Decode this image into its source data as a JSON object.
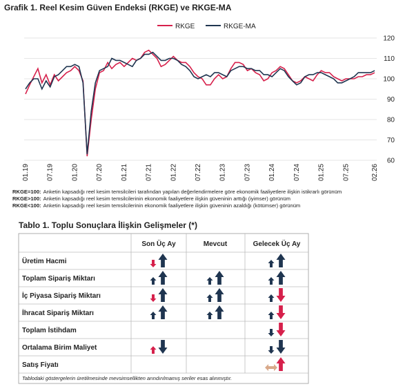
{
  "chart_data": {
    "type": "line",
    "title": "Grafik 1. Reel Kesim Güven Endeksi (RKGE) ve RKGE-MA",
    "categories": [
      "01.19",
      null,
      null,
      null,
      null,
      null,
      "07.19",
      null,
      null,
      null,
      null,
      null,
      "01.20",
      null,
      null,
      null,
      null,
      null,
      "07.20",
      null,
      null,
      null,
      null,
      null,
      "01.21",
      null,
      null,
      null,
      null,
      null,
      "07.21",
      null,
      null,
      null,
      null,
      null,
      "01.22",
      null,
      null,
      null,
      null,
      null,
      "07.22",
      null,
      null,
      null,
      null,
      null,
      "01.23",
      null,
      null,
      null,
      null,
      null,
      "07.23",
      null,
      null,
      null,
      null,
      null,
      "01.24",
      null,
      null,
      null,
      null,
      null,
      "07.24",
      null,
      null,
      null,
      null,
      null,
      "01.25",
      null,
      null,
      null,
      null,
      null,
      "07.25",
      null,
      null,
      null,
      null,
      null,
      null,
      "02.26"
    ],
    "series": [
      {
        "name": "RKGE",
        "color": "#d6204b",
        "values": [
          92.5,
          97,
          101,
          105,
          98,
          102,
          97,
          102,
          99,
          101,
          103,
          104,
          106,
          104,
          99,
          62,
          80,
          95,
          103,
          104,
          108,
          105,
          107,
          108,
          106,
          108,
          110,
          109,
          110,
          113,
          114,
          112,
          110,
          106,
          107,
          109,
          111,
          109,
          108,
          108,
          106,
          103,
          101,
          100,
          97,
          97,
          100,
          102,
          100,
          101,
          105,
          108,
          108,
          107,
          104,
          105,
          103,
          102,
          99,
          100,
          103,
          104,
          106,
          105,
          102,
          99,
          98,
          99,
          101,
          100,
          99,
          102,
          104,
          103,
          103,
          101,
          100,
          99,
          100,
          100,
          100,
          101,
          101,
          102,
          102,
          103
        ]
      },
      {
        "name": "RKGE-MA",
        "color": "#1f3550",
        "values": [
          95,
          98,
          100,
          100,
          95,
          99,
          96,
          101,
          102,
          104,
          106,
          106,
          107,
          106,
          98,
          63,
          84,
          98,
          104,
          105,
          106,
          110,
          109,
          109,
          108,
          107,
          106,
          109,
          110,
          112,
          112,
          113,
          111,
          109,
          109,
          110,
          110,
          109,
          107,
          106,
          104,
          101,
          100,
          101,
          102,
          101,
          103,
          103,
          102,
          101,
          104,
          105,
          106,
          106,
          105,
          105,
          104,
          104,
          102,
          102,
          101,
          103,
          105,
          104,
          101,
          99,
          97,
          98,
          101,
          102,
          102,
          103,
          103,
          102,
          101,
          100,
          98,
          98,
          99,
          100,
          101,
          103,
          103,
          103,
          103,
          104
        ]
      }
    ],
    "ylim": [
      60,
      120
    ],
    "yticks": [
      60,
      70,
      80,
      90,
      100,
      110,
      120
    ],
    "grid": true
  },
  "notes": [
    {
      "label": "RKGE=100:",
      "text": "Anketin kapsadığı reel kesim temsilcileri tarafından yapılan değerlendirmelere göre ekonomik faaliyetlere ilişkin istikrarlı görünüm"
    },
    {
      "label": "RKGE>100:",
      "text": "Anketin kapsadığı reel kesim temsilcilerinin ekonomik faaliyetlere ilişkin güveninin arttığı (iyimser) görünüm"
    },
    {
      "label": "RKGE<100:",
      "text": "Anketin kapsadığı reel kesim temsilcilerinin ekonomik faaliyetlere ilişkin güveninin azaldığı (kötümser) görünüm"
    }
  ],
  "table": {
    "title": "Tablo 1. Toplu Sonuçlara İlişkin Gelişmeler (*)",
    "columns": [
      "Son Üç Ay",
      "Mevcut",
      "Gelecek Üç Ay"
    ],
    "rows": [
      "Üretim Hacmi",
      "Toplam Sipariş Miktarı",
      "İç Piyasa Sipariş Miktarı",
      "İhracat Sipariş Miktarı",
      "Toplam İstihdam",
      "Ortalama Birim Maliyet",
      "Satış Fiyatı"
    ],
    "footnote": "Tablodaki göstergelerin üretilmesinde mevsimsellikten arındırılmamış seriler esas alınmıştır."
  }
}
